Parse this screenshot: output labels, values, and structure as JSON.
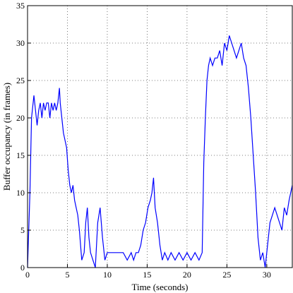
{
  "chart_data": {
    "type": "line",
    "title": "",
    "xlabel": "Time (seconds)",
    "ylabel": "Buffer occupancy (in frames)",
    "xlim": [
      0,
      33.2
    ],
    "ylim": [
      0,
      35
    ],
    "xticks": [
      0,
      5,
      10,
      15,
      20,
      25,
      30
    ],
    "yticks": [
      0,
      5,
      10,
      15,
      20,
      25,
      30,
      35
    ],
    "grid": true,
    "legend": "none",
    "series": [
      {
        "color": "#0000ff",
        "x": [
          0.0,
          0.3,
          0.5,
          0.8,
          1.0,
          1.2,
          1.4,
          1.6,
          1.8,
          2.0,
          2.2,
          2.4,
          2.6,
          2.8,
          3.0,
          3.2,
          3.4,
          3.6,
          3.8,
          4.0,
          4.1,
          4.3,
          4.5,
          4.7,
          4.9,
          5.1,
          5.3,
          5.5,
          5.7,
          5.9,
          6.1,
          6.3,
          6.5,
          6.8,
          7.1,
          7.3,
          7.5,
          7.7,
          7.9,
          8.2,
          8.5,
          8.8,
          9.1,
          9.4,
          9.7,
          10.0,
          10.5,
          11.0,
          11.5,
          12.0,
          12.5,
          13.0,
          13.3,
          13.6,
          13.9,
          14.2,
          14.5,
          14.8,
          15.1,
          15.4,
          15.6,
          15.8,
          16.0,
          16.3,
          16.6,
          16.9,
          17.2,
          17.6,
          18.0,
          18.5,
          19.0,
          19.5,
          20.0,
          20.5,
          21.0,
          21.5,
          21.9,
          22.1,
          22.3,
          22.5,
          22.7,
          22.9,
          23.2,
          23.5,
          23.8,
          24.1,
          24.4,
          24.7,
          25.0,
          25.3,
          25.6,
          25.9,
          26.2,
          26.5,
          26.8,
          27.1,
          27.4,
          27.7,
          28.0,
          28.3,
          28.6,
          28.9,
          29.2,
          29.5,
          29.8,
          30.1,
          30.4,
          30.7,
          31.0,
          31.3,
          31.6,
          31.9,
          32.2,
          32.5,
          32.8,
          33.0,
          33.2
        ],
        "y": [
          0,
          10,
          20,
          23,
          21,
          19,
          21,
          22,
          20,
          22,
          21,
          22,
          22,
          20,
          22,
          21,
          22,
          21,
          22,
          24,
          22,
          20,
          18,
          17,
          16,
          13,
          11,
          10,
          11,
          9,
          8,
          7,
          5,
          1,
          2,
          6,
          8,
          4,
          2,
          1,
          0,
          6,
          8,
          4,
          1,
          2,
          2,
          2,
          2,
          2,
          1,
          2,
          1,
          2,
          2,
          3,
          5,
          6,
          8,
          9,
          10,
          12,
          8,
          6,
          3,
          1,
          2,
          1,
          2,
          1,
          2,
          1,
          2,
          1,
          2,
          1,
          2,
          14,
          20,
          25,
          27,
          28,
          27,
          28,
          28,
          29,
          27,
          30,
          29,
          31,
          30,
          29,
          28,
          29,
          30,
          28,
          27,
          24,
          20,
          15,
          10,
          4,
          1,
          2,
          0,
          3,
          6,
          7,
          8,
          7,
          6,
          5,
          8,
          7,
          9,
          10,
          11
        ]
      }
    ]
  }
}
